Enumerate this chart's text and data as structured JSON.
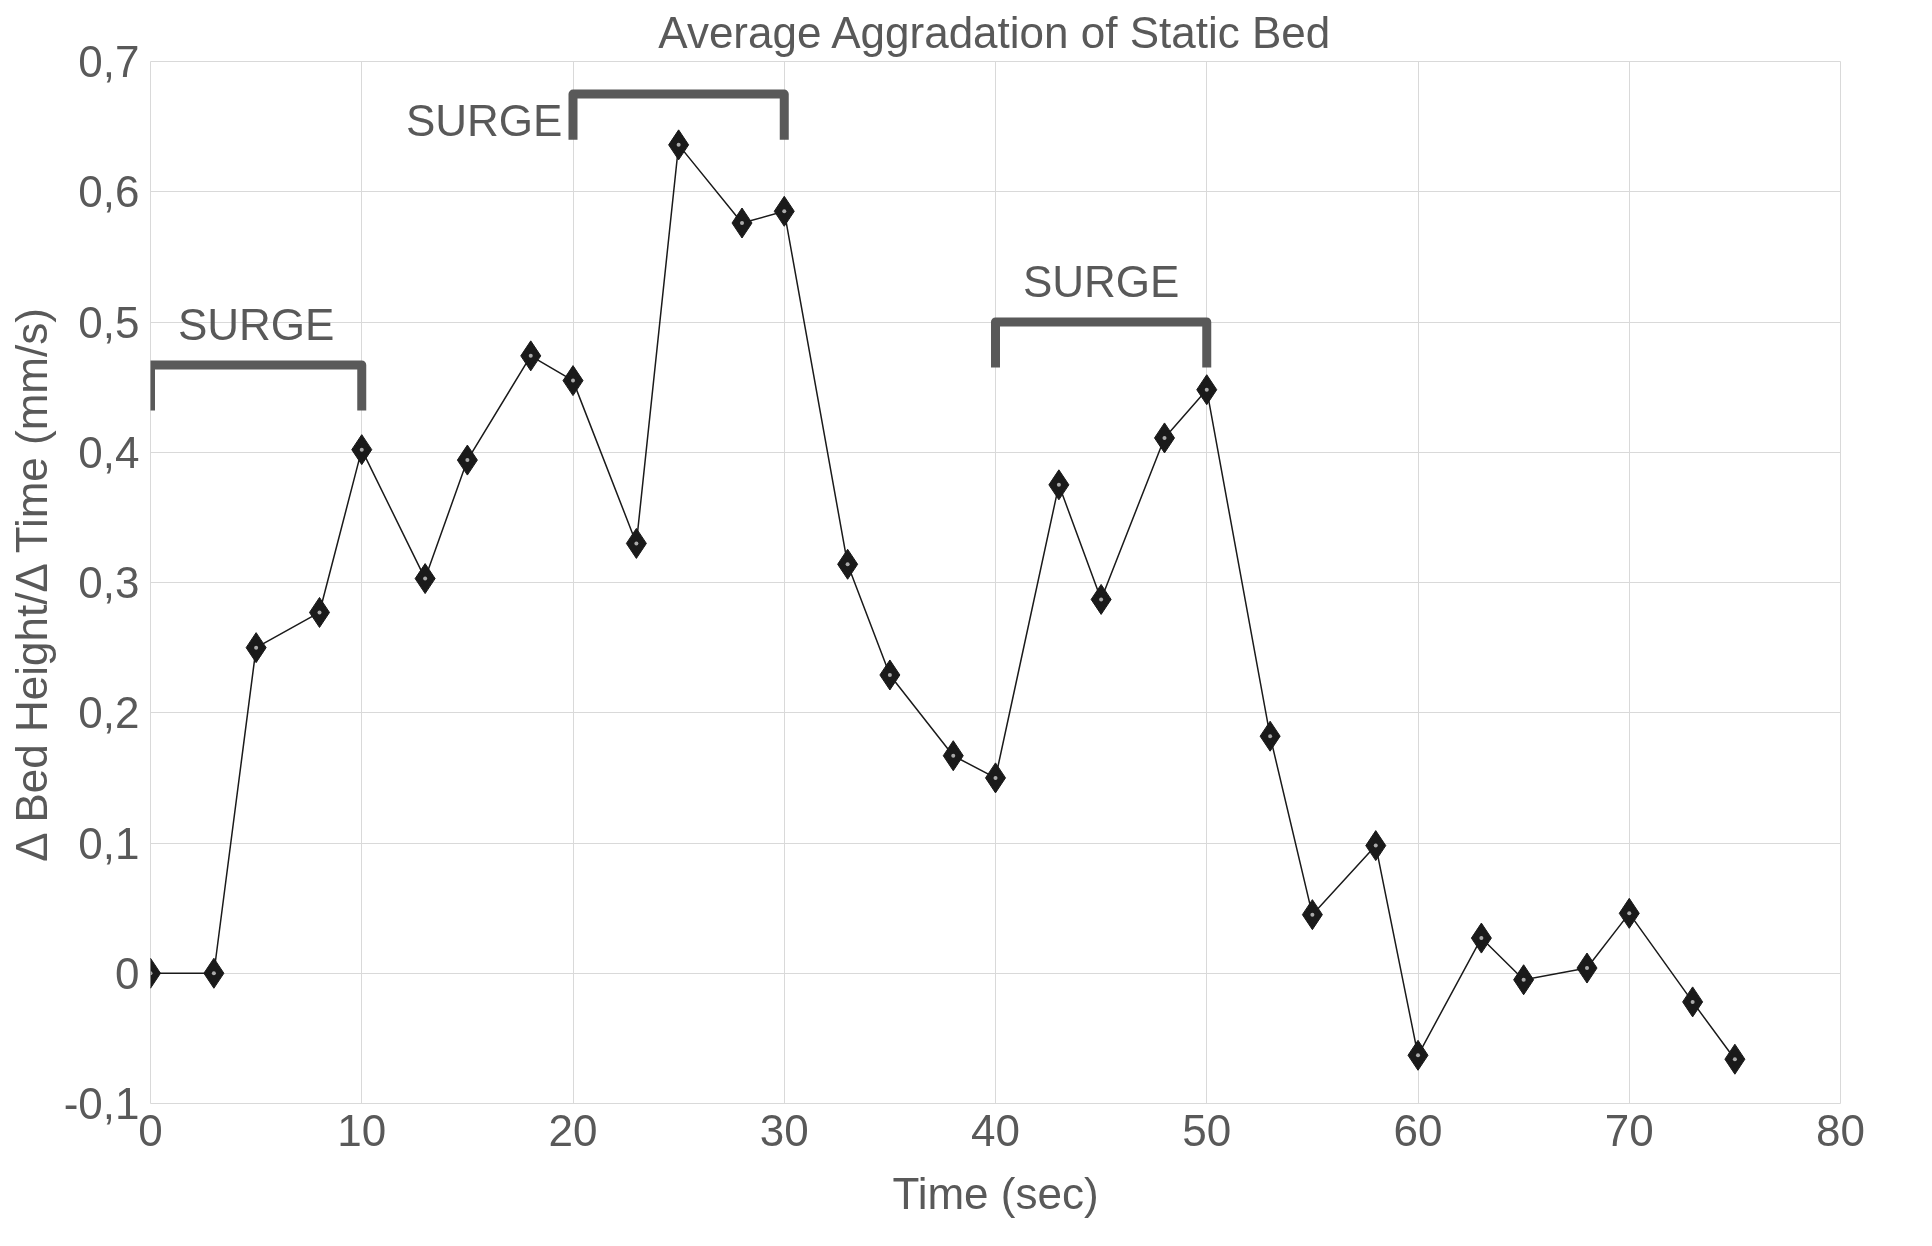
{
  "chart_data": {
    "type": "line",
    "title": "Average Aggradation of Static Bed",
    "xlabel": "Time (sec)",
    "ylabel": "Δ Bed Height/Δ Time (mm/s)",
    "x": [
      0,
      3,
      5,
      8,
      10,
      13,
      15,
      18,
      20,
      23,
      25,
      28,
      30,
      33,
      35,
      38,
      40,
      43,
      45,
      48,
      50,
      53,
      55,
      58,
      60,
      63,
      65,
      68,
      70,
      73,
      75
    ],
    "series": [
      {
        "color": "#1a1a1a",
        "values": [
          0,
          0,
          0.25,
          0.277,
          0.402,
          0.303,
          0.394,
          0.474,
          0.455,
          0.33,
          0.636,
          0.576,
          0.585,
          0.314,
          0.229,
          0.167,
          0.15,
          0.375,
          0.287,
          0.411,
          0.448,
          0.182,
          0.045,
          0.098,
          -0.063,
          0.027,
          -0.005,
          0.004,
          0.046,
          -0.022,
          -0.066
        ]
      }
    ],
    "xlim": [
      0,
      80
    ],
    "xticks": [
      0,
      10,
      20,
      30,
      40,
      50,
      60,
      70,
      80
    ],
    "ylim": [
      -0.1,
      0.7
    ],
    "yticks": [
      {
        "value": -0.1,
        "label": "-0,1"
      },
      {
        "value": 0,
        "label": "0"
      },
      {
        "value": 0.1,
        "label": "0,1"
      },
      {
        "value": 0.2,
        "label": "0,2"
      },
      {
        "value": 0.3,
        "label": "0,3"
      },
      {
        "value": 0.4,
        "label": "0,4"
      },
      {
        "value": 0.5,
        "label": "0,5"
      },
      {
        "value": 0.6,
        "label": "0,6"
      },
      {
        "value": 0.7,
        "label": "0,7"
      }
    ],
    "annotations": [
      "SURGE",
      "SURGE",
      "SURGE"
    ],
    "grid": true,
    "marker": "diamond",
    "line_style": "solid"
  }
}
